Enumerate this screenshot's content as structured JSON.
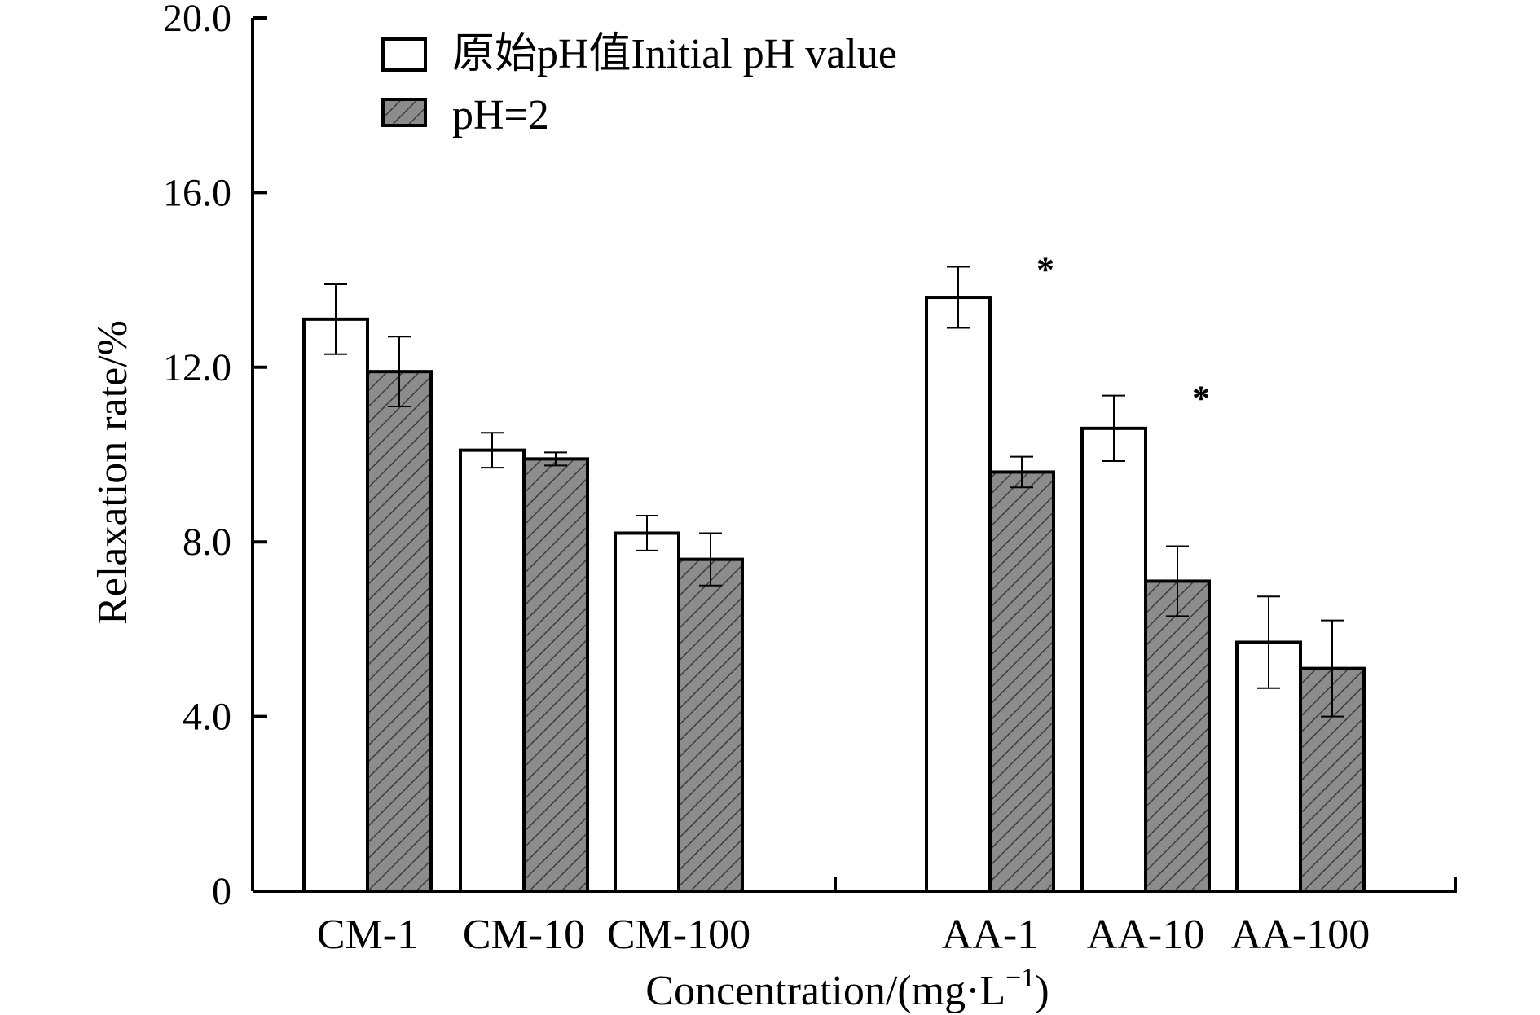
{
  "chart_data": {
    "type": "bar",
    "title": "",
    "xlabel": "Concentration/(mg·L",
    "xlabel_sup": "−1",
    "xlabel_close": ")",
    "ylabel": "Relaxation rate/%",
    "ylim": [
      0,
      20
    ],
    "yticks": [
      0,
      4,
      8,
      12,
      16,
      20
    ],
    "ytick_labels": [
      "0",
      "4.0",
      "8.0",
      "12.0",
      "16.0",
      "20.0"
    ],
    "grid": false,
    "legend_position": "top-left",
    "groups": [
      {
        "categories": [
          "CM-1",
          "CM-10",
          "CM-100"
        ]
      },
      {
        "categories": [
          "AA-1",
          "AA-10",
          "AA-100"
        ]
      }
    ],
    "categories": [
      "CM-1",
      "CM-10",
      "CM-100",
      "AA-1",
      "AA-10",
      "AA-100"
    ],
    "series": [
      {
        "name": "原始pH值Initial pH value",
        "values": [
          13.1,
          10.1,
          8.2,
          13.6,
          10.6,
          5.7
        ],
        "errors": [
          0.8,
          0.4,
          0.4,
          0.7,
          0.75,
          1.05
        ],
        "fill": "#ffffff",
        "pattern": "none"
      },
      {
        "name": "pH=2",
        "values": [
          11.9,
          9.9,
          7.6,
          9.6,
          7.1,
          5.1
        ],
        "errors": [
          0.8,
          0.15,
          0.6,
          0.35,
          0.8,
          1.1
        ],
        "fill": "#8c8c8c",
        "pattern": "hatch"
      }
    ],
    "annotations": [
      {
        "category": "AA-1",
        "text": "*"
      },
      {
        "category": "AA-10",
        "text": "*"
      }
    ]
  }
}
